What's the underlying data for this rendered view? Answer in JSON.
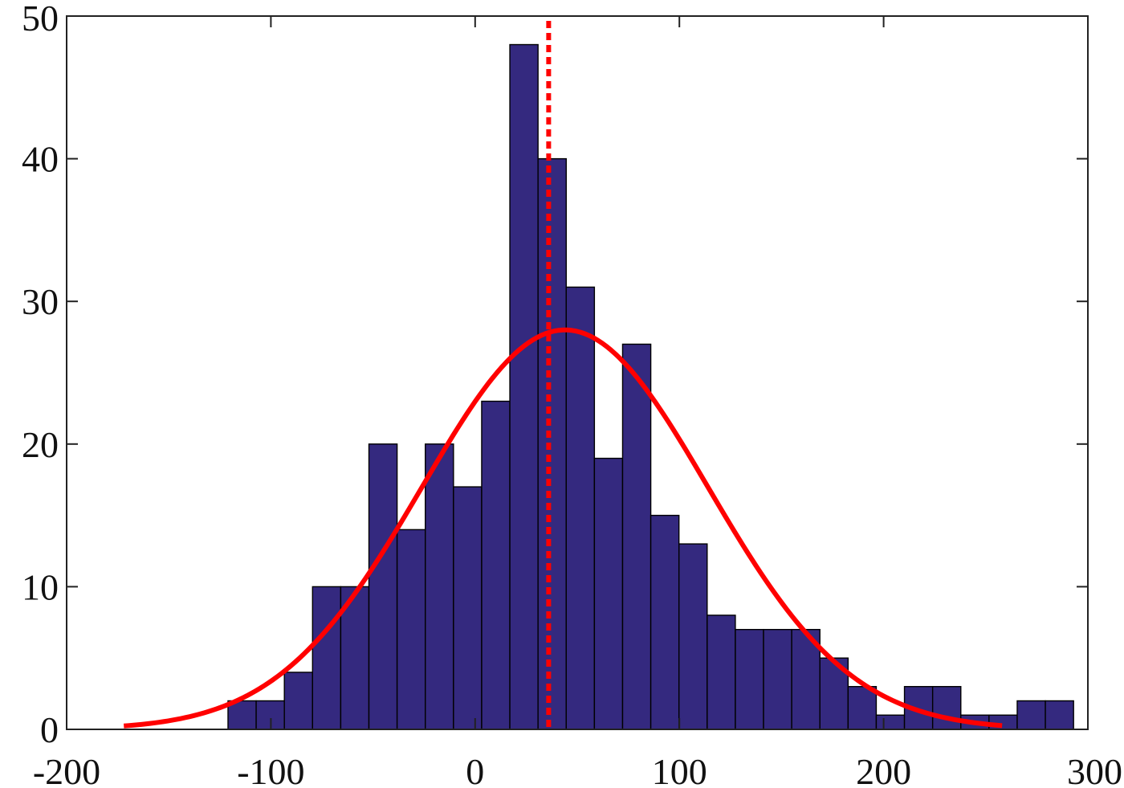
{
  "chart_data": {
    "type": "bar",
    "title": "",
    "xlabel": "",
    "ylabel": "",
    "xlim": [
      -200,
      300
    ],
    "ylim": [
      0,
      50
    ],
    "grid": false,
    "legend": "none",
    "x_ticks": [
      -200,
      -100,
      0,
      100,
      200,
      300
    ],
    "y_ticks": [
      0,
      10,
      20,
      30,
      40,
      50
    ],
    "bin_width": 13.8,
    "bins": [
      {
        "x0": -121.0,
        "x1": -107.2,
        "count": 2
      },
      {
        "x0": -107.2,
        "x1": -93.4,
        "count": 2
      },
      {
        "x0": -93.4,
        "x1": -79.6,
        "count": 4
      },
      {
        "x0": -79.6,
        "x1": -65.8,
        "count": 10
      },
      {
        "x0": -65.8,
        "x1": -52.0,
        "count": 10
      },
      {
        "x0": -52.0,
        "x1": -38.2,
        "count": 20
      },
      {
        "x0": -38.2,
        "x1": -24.4,
        "count": 14
      },
      {
        "x0": -24.4,
        "x1": -10.6,
        "count": 20
      },
      {
        "x0": -10.6,
        "x1": 3.2,
        "count": 17
      },
      {
        "x0": 3.2,
        "x1": 17.0,
        "count": 23
      },
      {
        "x0": 17.0,
        "x1": 30.8,
        "count": 48
      },
      {
        "x0": 30.8,
        "x1": 44.6,
        "count": 40
      },
      {
        "x0": 44.6,
        "x1": 58.4,
        "count": 31
      },
      {
        "x0": 58.4,
        "x1": 72.2,
        "count": 19
      },
      {
        "x0": 72.2,
        "x1": 86.0,
        "count": 27
      },
      {
        "x0": 86.0,
        "x1": 99.8,
        "count": 15
      },
      {
        "x0": 99.8,
        "x1": 113.6,
        "count": 13
      },
      {
        "x0": 113.6,
        "x1": 127.4,
        "count": 8
      },
      {
        "x0": 127.4,
        "x1": 141.2,
        "count": 7
      },
      {
        "x0": 141.2,
        "x1": 155.0,
        "count": 7
      },
      {
        "x0": 155.0,
        "x1": 168.8,
        "count": 7
      },
      {
        "x0": 168.8,
        "x1": 182.6,
        "count": 5
      },
      {
        "x0": 182.6,
        "x1": 196.4,
        "count": 3
      },
      {
        "x0": 196.4,
        "x1": 210.2,
        "count": 1
      },
      {
        "x0": 210.2,
        "x1": 224.0,
        "count": 3
      },
      {
        "x0": 224.0,
        "x1": 237.8,
        "count": 3
      },
      {
        "x0": 237.8,
        "x1": 251.6,
        "count": 1
      },
      {
        "x0": 251.6,
        "x1": 265.4,
        "count": 1
      },
      {
        "x0": 265.4,
        "x1": 279.2,
        "count": 2
      },
      {
        "x0": 279.2,
        "x1": 293.0,
        "count": 2
      }
    ],
    "fit_curve": {
      "type": "normal",
      "mean": 44,
      "sd": 70,
      "peak": 28,
      "x_range": [
        -172,
        258
      ],
      "color": "#ff0000"
    },
    "vertical_line": {
      "x": 36,
      "style": "dotted",
      "color": "#ff0000"
    },
    "bar_color": "#34297f"
  }
}
